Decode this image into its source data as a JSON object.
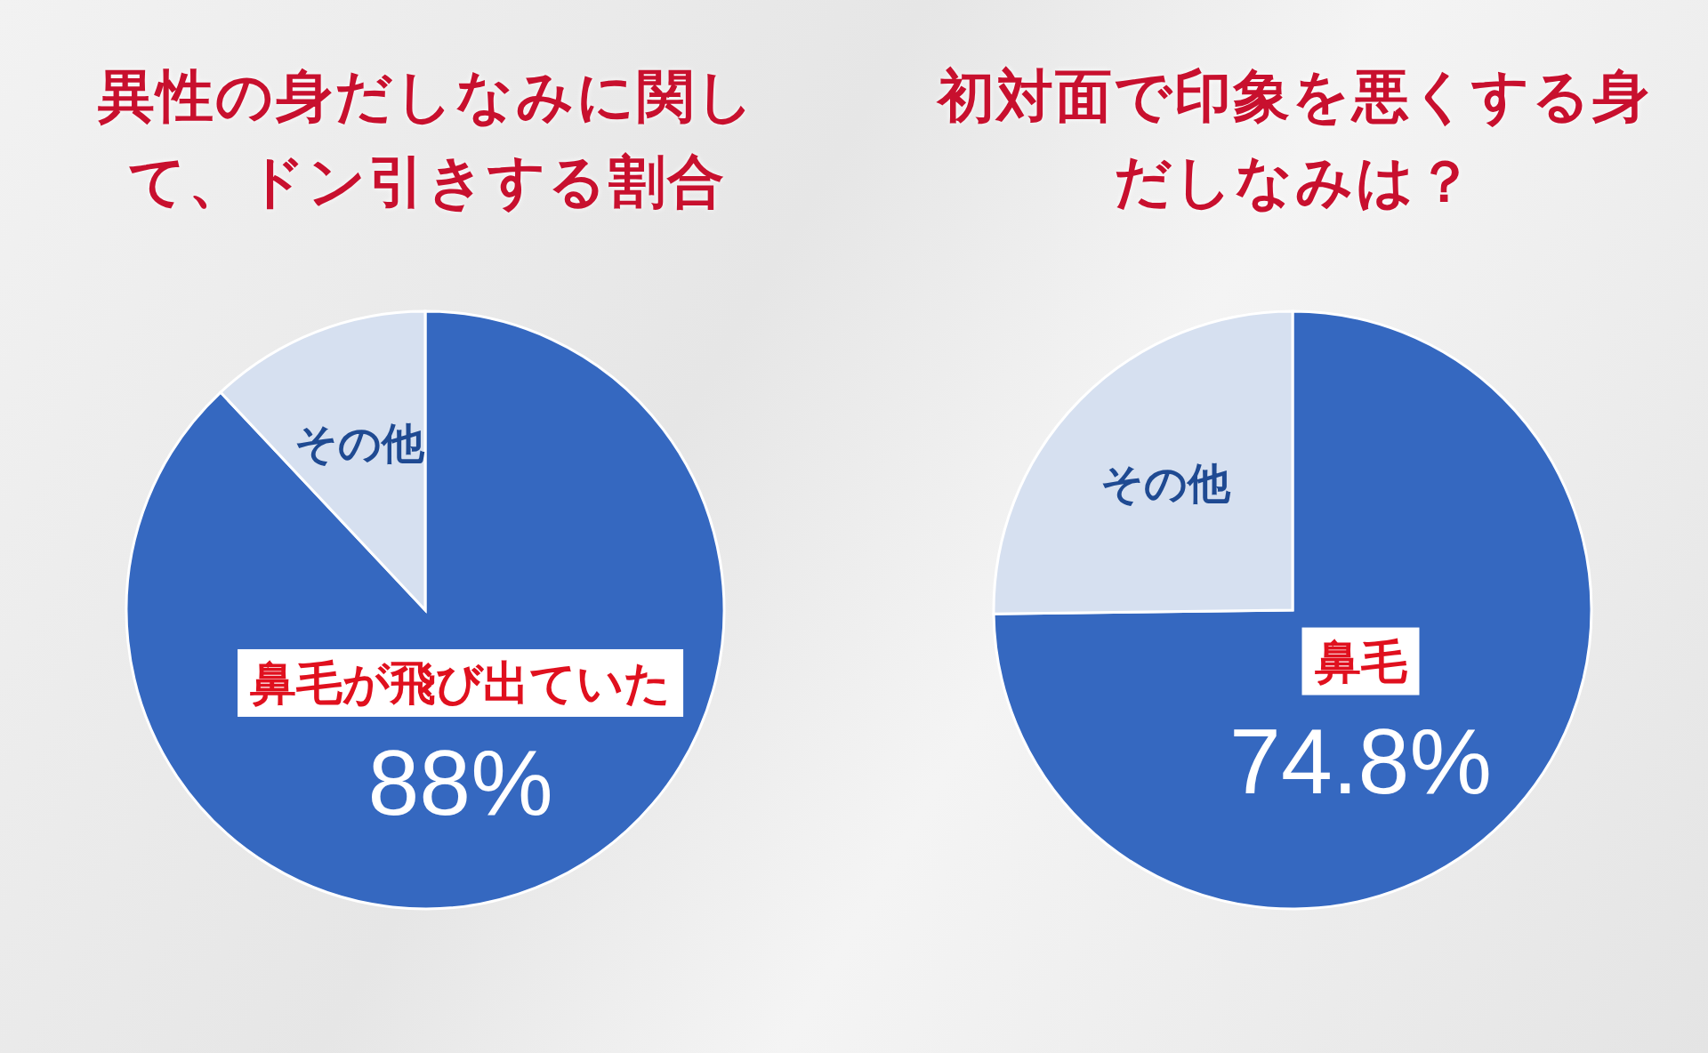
{
  "chart_data": [
    {
      "type": "pie",
      "title": "異性の身だしなみに関して、ドン引きする割合",
      "categories": [
        "鼻毛が飛び出ていた",
        "その他"
      ],
      "values": [
        88,
        12
      ],
      "colors": [
        "#3568c0",
        "#d6e0f0"
      ],
      "value_labels": [
        "88%",
        null
      ]
    },
    {
      "type": "pie",
      "title": "初対面で印象を悪くする身だしなみは？",
      "categories": [
        "鼻毛",
        "その他"
      ],
      "values": [
        74.8,
        25.2
      ],
      "colors": [
        "#3568c0",
        "#d6e0f0"
      ],
      "value_labels": [
        "74.8%",
        null
      ]
    }
  ]
}
